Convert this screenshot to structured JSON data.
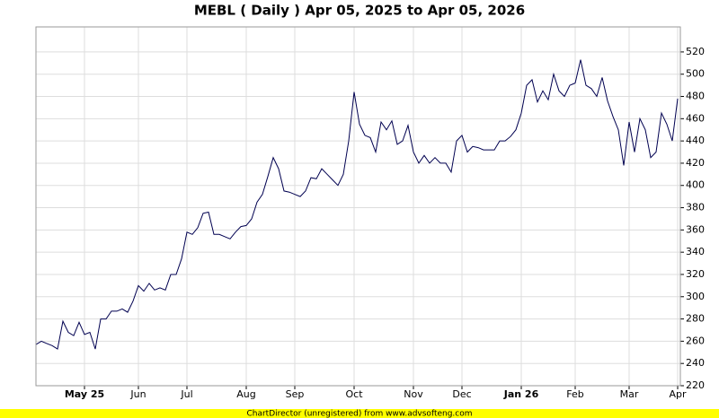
{
  "chart_data": {
    "type": "line",
    "title": "MEBL ( Daily ) Apr 05, 2025 to Apr 05, 2026",
    "footer": "ChartDirector (unregistered) from www.advsofteng.com",
    "categories": [
      null,
      null,
      null,
      null,
      null,
      null,
      null,
      null,
      null,
      "May 25",
      null,
      null,
      null,
      null,
      null,
      null,
      null,
      null,
      null,
      "Jun",
      null,
      null,
      null,
      null,
      null,
      null,
      null,
      null,
      "Jul",
      null,
      null,
      null,
      null,
      null,
      null,
      null,
      null,
      null,
      null,
      "Aug",
      null,
      null,
      null,
      null,
      null,
      null,
      null,
      null,
      "Sep",
      null,
      null,
      null,
      null,
      null,
      null,
      null,
      null,
      null,
      null,
      "Oct",
      null,
      null,
      null,
      null,
      null,
      null,
      null,
      null,
      null,
      null,
      "Nov",
      null,
      null,
      null,
      null,
      null,
      null,
      null,
      null,
      "Dec",
      null,
      null,
      null,
      null,
      null,
      null,
      null,
      null,
      null,
      null,
      "Jan 26",
      null,
      null,
      null,
      null,
      null,
      null,
      null,
      null,
      null,
      "Feb",
      null,
      null,
      null,
      null,
      null,
      null,
      null,
      null,
      null,
      "Mar",
      null,
      null,
      null,
      null,
      null,
      null,
      null,
      null,
      "Apr"
    ],
    "series": [
      {
        "color": "#000050",
        "values": [
          257,
          260,
          258,
          256,
          253,
          278,
          268,
          265,
          277,
          266,
          268,
          253,
          280,
          280,
          287,
          287,
          289,
          286,
          296,
          310,
          305,
          312,
          306,
          308,
          306,
          320,
          320,
          334,
          358,
          356,
          362,
          375,
          376,
          356,
          356,
          354,
          352,
          358,
          363,
          364,
          370,
          385,
          392,
          408,
          425,
          415,
          395,
          394,
          392,
          390,
          395,
          407,
          406,
          415,
          410,
          405,
          400,
          410,
          440,
          484,
          455,
          445,
          443,
          430,
          457,
          450,
          458,
          437,
          440,
          454,
          430,
          420,
          427,
          420,
          425,
          420,
          420,
          412,
          440,
          445,
          430,
          435,
          434,
          432,
          432,
          432,
          440,
          440,
          444,
          450,
          465,
          490,
          495,
          475,
          485,
          477,
          500,
          485,
          480,
          490,
          492,
          513,
          490,
          487,
          480,
          497,
          476,
          462,
          450,
          418,
          457,
          430,
          460,
          450,
          425,
          430,
          465,
          455,
          440,
          478
        ]
      }
    ],
    "ylim": [
      220,
      542.5
    ],
    "yticks": [
      220,
      240,
      260,
      280,
      300,
      320,
      340,
      360,
      380,
      400,
      420,
      440,
      460,
      480,
      500,
      520
    ],
    "grid": true
  }
}
